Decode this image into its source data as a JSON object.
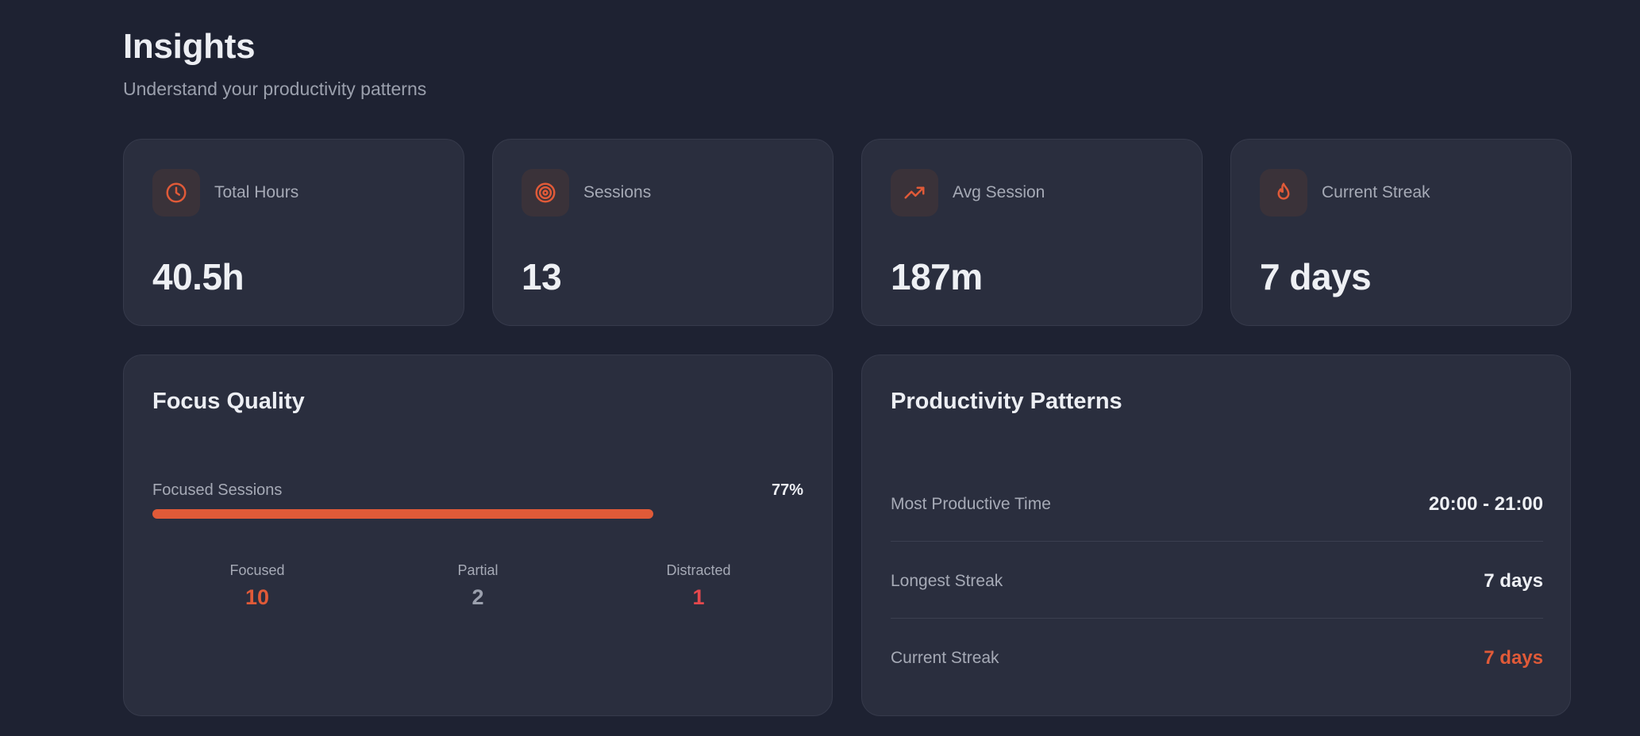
{
  "header": {
    "title": "Insights",
    "subtitle": "Understand your productivity patterns"
  },
  "stats": [
    {
      "icon": "clock-icon",
      "label": "Total Hours",
      "value": "40.5h"
    },
    {
      "icon": "target-icon",
      "label": "Sessions",
      "value": "13"
    },
    {
      "icon": "trending-up-icon",
      "label": "Avg Session",
      "value": "187m"
    },
    {
      "icon": "flame-icon",
      "label": "Current Streak",
      "value": "7 days"
    }
  ],
  "focus_quality": {
    "title": "Focus Quality",
    "bar_label": "Focused Sessions",
    "percent_label": "77%",
    "percent": 77,
    "breakdown": [
      {
        "label": "Focused",
        "value": "10",
        "color": "#e05a38"
      },
      {
        "label": "Partial",
        "value": "2",
        "color": "#9ba0ad"
      },
      {
        "label": "Distracted",
        "value": "1",
        "color": "#e5484d"
      }
    ]
  },
  "productivity_patterns": {
    "title": "Productivity Patterns",
    "rows": [
      {
        "label": "Most Productive Time",
        "value": "20:00 - 21:00",
        "color": "#eef0f4"
      },
      {
        "label": "Longest Streak",
        "value": "7 days",
        "color": "#eef0f4"
      },
      {
        "label": "Current Streak",
        "value": "7 days",
        "color": "#e05a38"
      }
    ]
  },
  "colors": {
    "background": "#1e2232",
    "card": "#2a2e3e",
    "accent": "#e05a38"
  }
}
